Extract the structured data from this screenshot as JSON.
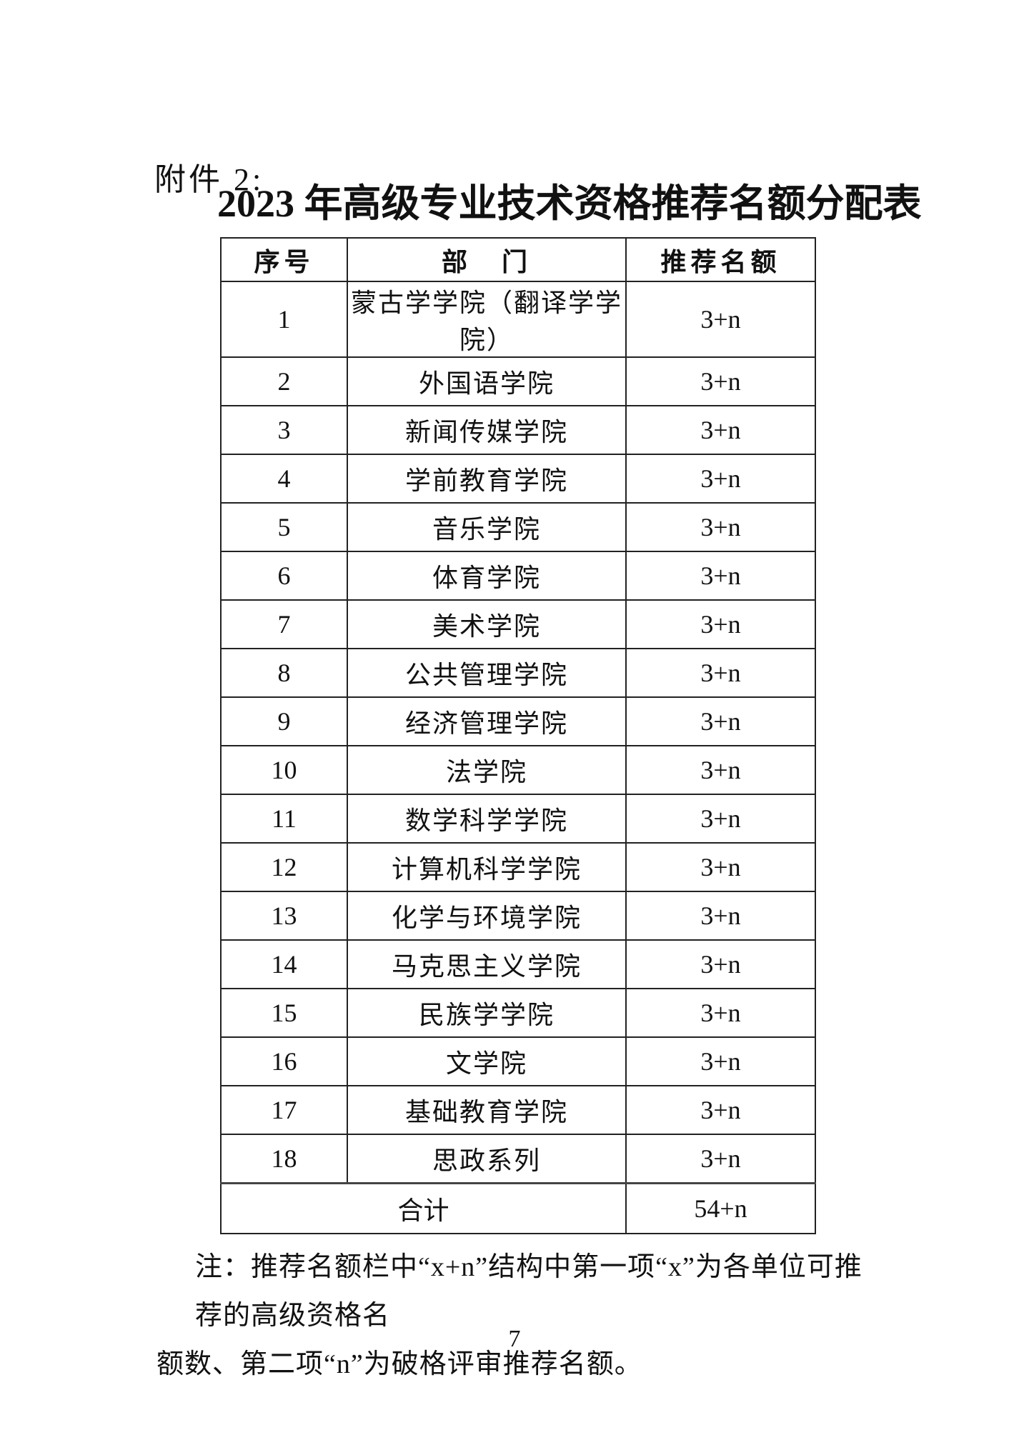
{
  "page": {
    "attachment_label": "附件 2:",
    "title": "2023 年高级专业技术资格推荐名额分配表",
    "page_number": "7"
  },
  "table": {
    "headers": {
      "no": "序号",
      "dept": "部　门",
      "quota": "推荐名额"
    },
    "rows": [
      {
        "no": "1",
        "dept": "蒙古学学院（翻译学学院）",
        "quota": "3+n"
      },
      {
        "no": "2",
        "dept": "外国语学院",
        "quota": "3+n"
      },
      {
        "no": "3",
        "dept": "新闻传媒学院",
        "quota": "3+n"
      },
      {
        "no": "4",
        "dept": "学前教育学院",
        "quota": "3+n"
      },
      {
        "no": "5",
        "dept": "音乐学院",
        "quota": "3+n"
      },
      {
        "no": "6",
        "dept": "体育学院",
        "quota": "3+n"
      },
      {
        "no": "7",
        "dept": "美术学院",
        "quota": "3+n"
      },
      {
        "no": "8",
        "dept": "公共管理学院",
        "quota": "3+n"
      },
      {
        "no": "9",
        "dept": "经济管理学院",
        "quota": "3+n"
      },
      {
        "no": "10",
        "dept": "法学院",
        "quota": "3+n"
      },
      {
        "no": "11",
        "dept": "数学科学学院",
        "quota": "3+n"
      },
      {
        "no": "12",
        "dept": "计算机科学学院",
        "quota": "3+n"
      },
      {
        "no": "13",
        "dept": "化学与环境学院",
        "quota": "3+n"
      },
      {
        "no": "14",
        "dept": "马克思主义学院",
        "quota": "3+n"
      },
      {
        "no": "15",
        "dept": "民族学学院",
        "quota": "3+n"
      },
      {
        "no": "16",
        "dept": "文学院",
        "quota": "3+n"
      },
      {
        "no": "17",
        "dept": "基础教育学院",
        "quota": "3+n"
      },
      {
        "no": "18",
        "dept": "思政系列",
        "quota": "3+n"
      }
    ],
    "total": {
      "label": "合计",
      "quota": "54+n"
    }
  },
  "note": {
    "lines": [
      "注：推荐名额栏中“x+n”结构中第一项“x”为各单位可推荐的高级资格名",
      "额数、第二项“n”为破格评审推荐名额。"
    ]
  }
}
